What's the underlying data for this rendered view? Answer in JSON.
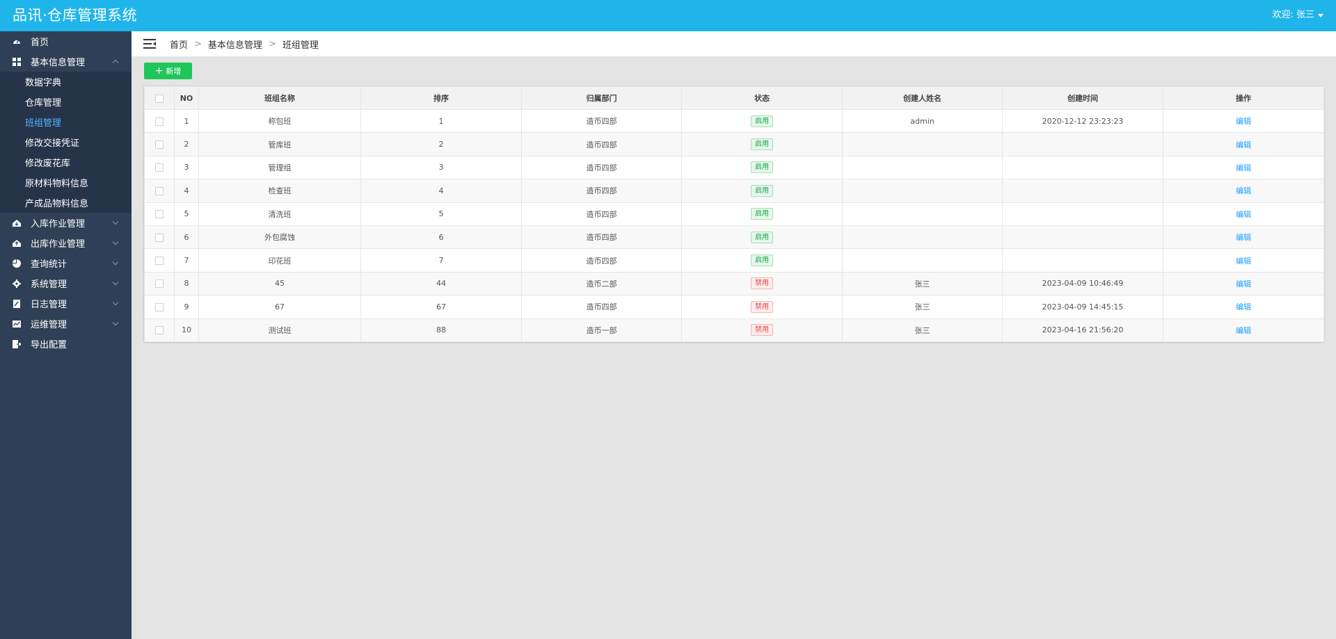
{
  "header": {
    "app_title": "品讯·仓库管理系统",
    "user_label": "欢迎: 张三"
  },
  "sidebar": {
    "items": [
      {
        "label": "首页",
        "icon": "dashboard-icon"
      },
      {
        "label": "基本信息管理",
        "icon": "grid-icon",
        "expanded": true,
        "children": [
          {
            "label": "数据字典"
          },
          {
            "label": "仓库管理"
          },
          {
            "label": "班组管理",
            "active": true
          },
          {
            "label": "修改交接凭证"
          },
          {
            "label": "修改废花库"
          },
          {
            "label": "原材料物料信息"
          },
          {
            "label": "产成品物料信息"
          }
        ]
      },
      {
        "label": "入库作业管理",
        "icon": "inbound-icon"
      },
      {
        "label": "出库作业管理",
        "icon": "outbound-icon"
      },
      {
        "label": "查询统计",
        "icon": "pie-chart-icon"
      },
      {
        "label": "系统管理",
        "icon": "gear-icon"
      },
      {
        "label": "日志管理",
        "icon": "log-icon"
      },
      {
        "label": "运维管理",
        "icon": "line-chart-icon"
      },
      {
        "label": "导出配置",
        "icon": "export-icon"
      }
    ]
  },
  "breadcrumb": {
    "home": "首页",
    "level1": "基本信息管理",
    "current": "班组管理",
    "separator": ">"
  },
  "toolbar": {
    "add_label": "新增",
    "add_color": "#1fc65a"
  },
  "table": {
    "columns": [
      "NO",
      "班组名称",
      "排序",
      "归属部门",
      "状态",
      "创建人姓名",
      "创建时间",
      "操作"
    ],
    "rows": [
      {
        "no": "1",
        "name": "称包班",
        "sort": "1",
        "dept": "造币四部",
        "status": "启用",
        "creator": "admin",
        "created": "2020-12-12 23:23:23",
        "action": "编辑"
      },
      {
        "no": "2",
        "name": "管库班",
        "sort": "2",
        "dept": "造币四部",
        "status": "启用",
        "creator": "",
        "created": "",
        "action": "编辑"
      },
      {
        "no": "3",
        "name": "管理组",
        "sort": "3",
        "dept": "造币四部",
        "status": "启用",
        "creator": "",
        "created": "",
        "action": "编辑"
      },
      {
        "no": "4",
        "name": "检查班",
        "sort": "4",
        "dept": "造币四部",
        "status": "启用",
        "creator": "",
        "created": "",
        "action": "编辑"
      },
      {
        "no": "5",
        "name": "清洗班",
        "sort": "5",
        "dept": "造币四部",
        "status": "启用",
        "creator": "",
        "created": "",
        "action": "编辑"
      },
      {
        "no": "6",
        "name": "外包腐蚀",
        "sort": "6",
        "dept": "造币四部",
        "status": "启用",
        "creator": "",
        "created": "",
        "action": "编辑"
      },
      {
        "no": "7",
        "name": "印花班",
        "sort": "7",
        "dept": "造币四部",
        "status": "启用",
        "creator": "",
        "created": "",
        "action": "编辑"
      },
      {
        "no": "8",
        "name": "45",
        "sort": "44",
        "dept": "造币二部",
        "status": "禁用",
        "creator": "张三",
        "created": "2023-04-09 10:46:49",
        "action": "编辑"
      },
      {
        "no": "9",
        "name": "67",
        "sort": "67",
        "dept": "造币四部",
        "status": "禁用",
        "creator": "张三",
        "created": "2023-04-09 14:45:15",
        "action": "编辑"
      },
      {
        "no": "10",
        "name": "测试班",
        "sort": "88",
        "dept": "造币一部",
        "status": "禁用",
        "creator": "张三",
        "created": "2023-04-16 21:56:20",
        "action": "编辑"
      }
    ]
  },
  "colors": {
    "header_bg": "#20b5ea",
    "sidebar_bg": "#2f4056",
    "active_menu": "#52b4ff",
    "enabled": "#1aa34a",
    "disabled": "#e04848",
    "link": "#1e9fff"
  }
}
